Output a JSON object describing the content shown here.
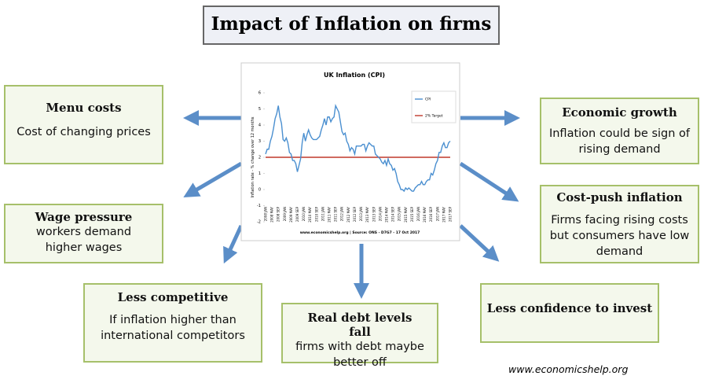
{
  "title": "Impact of Inflation on firms",
  "boxes": [
    {
      "heading": "Menu costs",
      "body": "Cost of changing prices"
    },
    {
      "heading": "Wage pressure",
      "body": "workers demand higher wages"
    },
    {
      "heading": "Less competitive",
      "body": "If inflation higher than international competitors"
    },
    {
      "heading": "Real debt levels fall",
      "body": "firms with debt maybe better off"
    },
    {
      "heading": "Less confidence to invest"
    },
    {
      "heading": "Economic growth",
      "body": "Inflation could be sign of rising demand"
    },
    {
      "heading": "Cost-push inflation",
      "body": "Firms facing rising costs but consumers have low demand"
    }
  ],
  "footer": "www.economicshelp.org",
  "chart_data": {
    "type": "line",
    "title": "UK Inflation (CPI)",
    "y_label": "Inflation rate - % change over 12 months",
    "source": "www.economicshelp.org | Source: ONS - D7G7 - 17 Oct 2017",
    "categories": [
      "2008 JAN",
      null,
      null,
      null,
      "2008 MAY",
      null,
      null,
      null,
      "2008 SEP",
      null,
      null,
      null,
      "2009 JAN",
      null,
      null,
      null,
      "2009 MAY",
      null,
      null,
      null,
      "2009 SEP",
      null,
      null,
      null,
      "2010 JAN",
      null,
      null,
      null,
      "2010 MAY",
      null,
      null,
      null,
      "2010 SEP",
      null,
      null,
      null,
      "2011 JAN",
      null,
      null,
      null,
      "2011 MAY",
      null,
      null,
      null,
      "2011 SEP",
      null,
      null,
      null,
      "2012 JAN",
      null,
      null,
      null,
      "2012 MAY",
      null,
      null,
      null,
      "2012 SEP",
      null,
      null,
      null,
      "2013 JAN",
      null,
      null,
      null,
      "2013 MAY",
      null,
      null,
      null,
      "2013 SEP",
      null,
      null,
      null,
      "2014 JAN",
      null,
      null,
      null,
      "2014 MAY",
      null,
      null,
      null,
      "2014 SEP",
      null,
      null,
      null,
      "2015 JAN",
      null,
      null,
      null,
      "2015 MAY",
      null,
      null,
      null,
      "2015 SEP",
      null,
      null,
      null,
      "2016 JAN",
      null,
      null,
      null,
      "2016 MAY",
      null,
      null,
      null,
      "2016 SEP",
      null,
      null,
      null,
      "2017 JAN",
      null,
      null,
      null,
      "2017 MAY",
      null,
      null,
      null,
      "2017 SEP"
    ],
    "series": [
      {
        "name": "CPI",
        "color": "#4a8fd0",
        "values": [
          2.2,
          2.5,
          2.5,
          3.0,
          3.3,
          3.8,
          4.4,
          4.7,
          5.2,
          4.5,
          4.1,
          3.1,
          3.0,
          3.2,
          2.9,
          2.3,
          2.2,
          1.8,
          1.8,
          1.6,
          1.1,
          1.5,
          1.9,
          2.9,
          3.5,
          3.0,
          3.4,
          3.7,
          3.4,
          3.2,
          3.1,
          3.1,
          3.1,
          3.2,
          3.3,
          3.7,
          4.0,
          4.4,
          4.0,
          4.5,
          4.5,
          4.2,
          4.4,
          4.5,
          5.2,
          5.0,
          4.8,
          4.2,
          3.6,
          3.4,
          3.5,
          3.0,
          2.8,
          2.4,
          2.6,
          2.5,
          2.2,
          2.7,
          2.7,
          2.7,
          2.7,
          2.8,
          2.8,
          2.4,
          2.7,
          2.9,
          2.8,
          2.7,
          2.7,
          2.2,
          2.1,
          2.0,
          1.9,
          1.7,
          1.6,
          1.8,
          1.5,
          1.9,
          1.6,
          1.5,
          1.2,
          1.3,
          1.0,
          0.5,
          0.3,
          0.0,
          0.0,
          -0.1,
          0.1,
          0.0,
          0.1,
          0.0,
          -0.1,
          -0.1,
          0.1,
          0.2,
          0.3,
          0.3,
          0.5,
          0.3,
          0.3,
          0.5,
          0.6,
          0.6,
          1.0,
          0.9,
          1.2,
          1.6,
          1.8,
          2.3,
          2.3,
          2.7,
          2.9,
          2.6,
          2.6,
          2.9,
          3.0
        ]
      }
    ],
    "reference_line": {
      "name": "2% Target",
      "value": 2,
      "color": "#c0392b"
    },
    "ylim": [
      -2,
      6
    ],
    "yticks": [
      -2,
      -1,
      0,
      1,
      2,
      3,
      4,
      5,
      6
    ]
  }
}
